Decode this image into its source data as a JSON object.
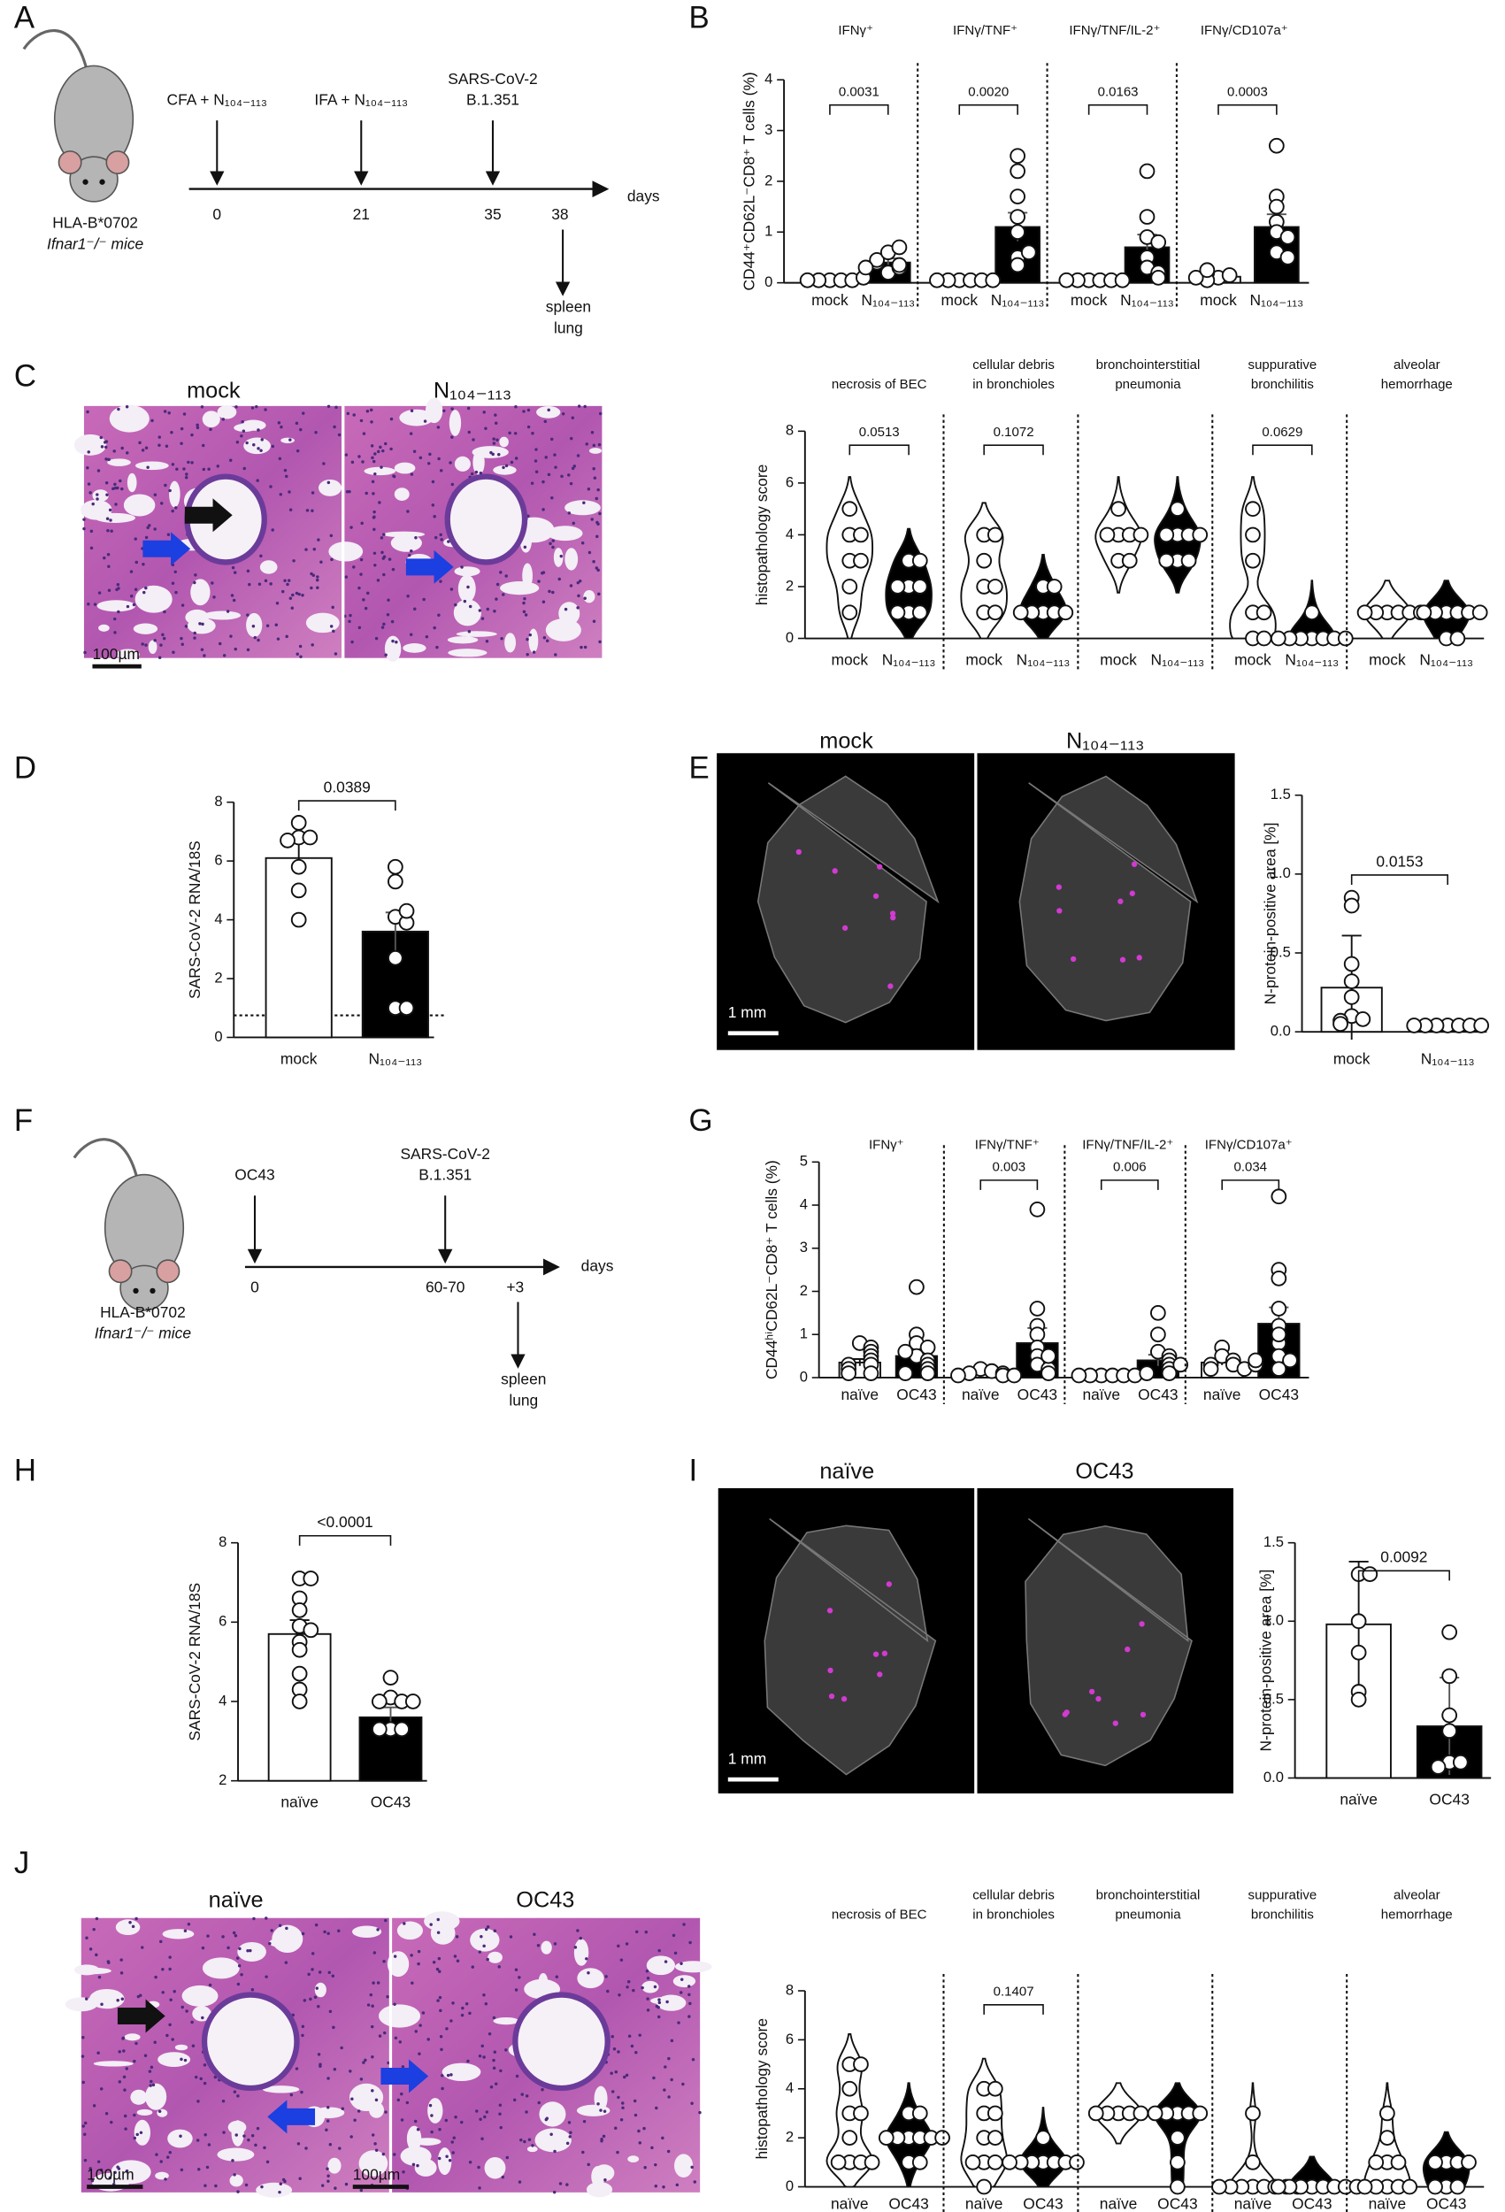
{
  "panel_labels": [
    "A",
    "B",
    "C",
    "D",
    "E",
    "F",
    "G",
    "H",
    "I",
    "J"
  ],
  "schemes": [
    {
      "mouse": [
        "HLA-B*0702",
        "Ifnar1⁻/⁻ mice"
      ],
      "axis": "days",
      "events": [
        {
          "label": [
            "CFA + N₁₀₄₋₁₁₃"
          ],
          "day": "0"
        },
        {
          "label": [
            "IFA + N₁₀₄₋₁₁₃"
          ],
          "day": "21"
        },
        {
          "label": [
            "SARS-CoV-2",
            "B.1.351"
          ],
          "day": "35"
        },
        {
          "label": [
            "spleen",
            "lung"
          ],
          "day": "38"
        }
      ]
    },
    {
      "mouse": [
        "HLA-B*0702",
        "Ifnar1⁻/⁻ mice"
      ],
      "axis": "days",
      "events": [
        {
          "label": [
            "OC43"
          ],
          "day": "0"
        },
        {
          "label": [
            "SARS-CoV-2",
            "B.1.351"
          ],
          "day": "60-70"
        },
        {
          "label": [
            "spleen",
            "lung"
          ],
          "day": "+3"
        }
      ]
    }
  ],
  "micrographs": [
    {
      "labels": [
        "mock",
        "N₁₀₄₋₁₁₃"
      ],
      "scale_bars": [
        "100µm"
      ]
    },
    {
      "labels": [
        "mock",
        "N₁₀₄₋₁₁₃"
      ],
      "scale_bars": [
        "1 mm"
      ]
    },
    {
      "labels": [
        "naïve",
        "OC43"
      ],
      "scale_bars": [
        "1 mm"
      ]
    },
    {
      "labels": [
        "naïve",
        "OC43"
      ],
      "scale_bars": [
        "100µm",
        "100µm"
      ]
    }
  ],
  "chart_data": [
    {
      "type": "dot_bar",
      "ylabel": "CD44⁺CD62L⁻CD8⁺ T cells (%)",
      "ylim": [
        0,
        4
      ],
      "yticks": [
        0,
        1,
        2,
        3,
        4
      ],
      "colors": [
        "#ffffff",
        "#000000"
      ],
      "subplots": [
        {
          "title": [
            "IFNγ⁺"
          ],
          "categories": [
            "mock",
            "N₁₀₄₋₁₁₃"
          ],
          "values": [
            0.05,
            0.4
          ],
          "errors": [
            0.02,
            0.08
          ],
          "points": [
            [
              0.05,
              0.05,
              0.05,
              0.05,
              0.05,
              0.1
            ],
            [
              0.2,
              0.3,
              0.35,
              0.4,
              0.45,
              0.6,
              0.7,
              0.3
            ]
          ],
          "p_value": "0.0031"
        },
        {
          "title": [
            "IFNγ/TNF⁺"
          ],
          "categories": [
            "mock",
            "N₁₀₄₋₁₁₃"
          ],
          "values": [
            0.05,
            1.1
          ],
          "errors": [
            0.02,
            0.28
          ],
          "points": [
            [
              0.05,
              0.05,
              0.05,
              0.05,
              0.05,
              0.05
            ],
            [
              2.5,
              2.2,
              1.7,
              1.3,
              1.0,
              0.5,
              0.35,
              0.6
            ]
          ],
          "p_value": "0.0020"
        },
        {
          "title": [
            "IFNγ/TNF/IL-2⁺"
          ],
          "categories": [
            "mock",
            "N₁₀₄₋₁₁₃"
          ],
          "values": [
            0.05,
            0.7
          ],
          "errors": [
            0.02,
            0.25
          ],
          "points": [
            [
              0.05,
              0.05,
              0.05,
              0.05,
              0.05,
              0.05
            ],
            [
              2.2,
              1.3,
              0.9,
              0.8,
              0.5,
              0.3,
              0.2,
              0.1
            ]
          ],
          "p_value": "0.0163"
        },
        {
          "title": [
            "IFNγ/CD107a⁺"
          ],
          "categories": [
            "mock",
            "N₁₀₄₋₁₁₃"
          ],
          "values": [
            0.12,
            1.1
          ],
          "errors": [
            0.03,
            0.25
          ],
          "points": [
            [
              0.1,
              0.15,
              0.2,
              0.05,
              0.1,
              0.25
            ],
            [
              2.7,
              1.7,
              1.5,
              1.2,
              1.0,
              0.9,
              0.6,
              0.5
            ]
          ],
          "p_value": "0.0003"
        }
      ]
    },
    {
      "type": "violin",
      "ylabel": "histopathology score",
      "ylim": [
        0,
        8
      ],
      "yticks": [
        0,
        2,
        4,
        6,
        8
      ],
      "colors": [
        "#ffffff",
        "#000000"
      ],
      "subplots": [
        {
          "title": [
            "necrosis of BEC"
          ],
          "categories": [
            "mock",
            "N₁₀₄₋₁₁₃"
          ],
          "points": [
            [
              5,
              4,
              4,
              3,
              3,
              2,
              1
            ],
            [
              3,
              2,
              2,
              2,
              1,
              1,
              1,
              3
            ]
          ],
          "p_value": "0.0513"
        },
        {
          "title": [
            "cellular debris",
            "in bronchioles"
          ],
          "categories": [
            "mock",
            "N₁₀₄₋₁₁₃"
          ],
          "points": [
            [
              4,
              4,
              3,
              2,
              2,
              1,
              1
            ],
            [
              2,
              2,
              1,
              1,
              1,
              1,
              1
            ]
          ],
          "p_value": "0.1072"
        },
        {
          "title": [
            "bronchointerstitial",
            "pneumonia"
          ],
          "categories": [
            "mock",
            "N₁₀₄₋₁₁₃"
          ],
          "points": [
            [
              5,
              4,
              4,
              4,
              4,
              3,
              3
            ],
            [
              5,
              4,
              4,
              4,
              3,
              3,
              3,
              4
            ]
          ]
        },
        {
          "title": [
            "suppurative",
            "bronchilitis"
          ],
          "categories": [
            "mock",
            "N₁₀₄₋₁₁₃"
          ],
          "points": [
            [
              5,
              4,
              3,
              1,
              1,
              0,
              0
            ],
            [
              1,
              0,
              0,
              0,
              0,
              0,
              0,
              0
            ]
          ],
          "p_value": "0.0629"
        },
        {
          "title": [
            "alveolar",
            "hemorrhage"
          ],
          "categories": [
            "mock",
            "N₁₀₄₋₁₁₃"
          ],
          "points": [
            [
              1,
              1,
              1,
              1,
              1,
              1
            ],
            [
              1,
              1,
              1,
              1,
              1,
              0,
              0,
              1
            ]
          ]
        }
      ]
    },
    {
      "type": "dot_bar",
      "ylabel": "SARS-CoV-2 RNA/18S",
      "ylim": [
        0,
        8
      ],
      "yticks": [
        0,
        2,
        4,
        6,
        8
      ],
      "colors": [
        "#ffffff",
        "#000000"
      ],
      "detection_limit": 0.75,
      "subplots": [
        {
          "categories": [
            "mock",
            "N₁₀₄₋₁₁₃"
          ],
          "values": [
            6.1,
            3.6
          ],
          "errors": [
            0.55,
            0.65
          ],
          "points": [
            [
              7.3,
              6.8,
              6.8,
              6.7,
              5.8,
              5.0,
              4.0
            ],
            [
              5.8,
              5.3,
              4.1,
              3.9,
              4.3,
              2.7,
              1.0,
              1.0
            ]
          ],
          "p_value": "0.0389"
        }
      ]
    },
    {
      "type": "dot_bar",
      "ylabel": "N-protein-positive area [%]",
      "ylim": [
        0,
        1.5
      ],
      "yticks": [
        {
          "value": 0,
          "label": "0.0"
        },
        0.5,
        {
          "value": 1,
          "label": "1.0"
        },
        1.5
      ],
      "colors": [
        "#ffffff",
        "#000000"
      ],
      "subplots": [
        {
          "categories": [
            "mock",
            "N₁₀₄₋₁₁₃"
          ],
          "values": [
            0.28,
            0.04
          ],
          "errors": [
            0.33,
            0.005
          ],
          "points": [
            [
              0.85,
              0.8,
              0.43,
              0.32,
              0.22,
              0.1,
              0.08,
              0.07,
              0.05
            ],
            [
              0.04,
              0.04,
              0.04,
              0.04,
              0.04,
              0.04,
              0.04
            ]
          ],
          "p_value": "0.0153"
        }
      ]
    },
    {
      "type": "dot_bar",
      "ylabel": "CD44ʰⁱCD62L⁻CD8⁺ T cells (%)",
      "ylim": [
        0,
        5
      ],
      "yticks": [
        0,
        1,
        2,
        3,
        4,
        5
      ],
      "colors": [
        "#ffffff",
        "#000000"
      ],
      "subplots": [
        {
          "title": [
            "IFNγ⁺"
          ],
          "categories": [
            "naïve",
            "OC43"
          ],
          "values": [
            0.35,
            0.5
          ],
          "errors": [
            0.08,
            0.18
          ],
          "points": [
            [
              0.8,
              0.7,
              0.6,
              0.5,
              0.4,
              0.3,
              0.3,
              0.2,
              0.1,
              0.1
            ],
            [
              2.1,
              1.0,
              0.8,
              0.7,
              0.5,
              0.4,
              0.3,
              0.2,
              0.1,
              0.1,
              0.6
            ]
          ]
        },
        {
          "title": [
            "IFNγ/TNF⁺"
          ],
          "categories": [
            "naïve",
            "OC43"
          ],
          "values": [
            0.1,
            0.8
          ],
          "errors": [
            0.03,
            0.35
          ],
          "points": [
            [
              0.2,
              0.15,
              0.1,
              0.1,
              0.05,
              0.05,
              0.05
            ],
            [
              3.9,
              1.6,
              1.2,
              1.0,
              0.7,
              0.5,
              0.3,
              0.2,
              0.1,
              0.5
            ]
          ],
          "p_value": "0.003"
        },
        {
          "title": [
            "IFNγ/TNF/IL-2⁺"
          ],
          "categories": [
            "naïve",
            "OC43"
          ],
          "values": [
            0.05,
            0.4
          ],
          "errors": [
            0.01,
            0.13
          ],
          "points": [
            [
              0.05,
              0.05,
              0.05,
              0.05,
              0.05,
              0.05
            ],
            [
              1.5,
              1.0,
              0.6,
              0.5,
              0.4,
              0.3,
              0.2,
              0.1,
              0.1,
              0.3
            ]
          ],
          "p_value": "0.006"
        },
        {
          "title": [
            "IFNγ/CD107a⁺"
          ],
          "categories": [
            "naïve",
            "OC43"
          ],
          "values": [
            0.35,
            1.25
          ],
          "errors": [
            0.06,
            0.38
          ],
          "points": [
            [
              0.7,
              0.5,
              0.4,
              0.3,
              0.3,
              0.2,
              0.2,
              0.3,
              0.4
            ],
            [
              4.2,
              2.5,
              2.3,
              1.6,
              1.2,
              0.8,
              0.5,
              0.4,
              0.2,
              1.0
            ]
          ],
          "p_value": "0.034"
        }
      ]
    },
    {
      "type": "dot_bar",
      "ylabel": "SARS-CoV-2 RNA/18S",
      "ylim": [
        2,
        8
      ],
      "yticks": [
        2,
        4,
        6,
        8
      ],
      "colors": [
        "#ffffff",
        "#000000"
      ],
      "subplots": [
        {
          "categories": [
            "naïve",
            "OC43"
          ],
          "values": [
            5.7,
            3.6
          ],
          "errors": [
            0.35,
            0.25
          ],
          "points": [
            [
              7.1,
              7.1,
              6.6,
              6.3,
              5.9,
              5.8,
              5.5,
              5.3,
              4.7,
              4.3,
              4.0
            ],
            [
              4.6,
              4.1,
              4.0,
              4.0,
              4.0,
              3.3,
              3.3,
              3.3
            ]
          ],
          "p_value": "<0.0001"
        }
      ]
    },
    {
      "type": "dot_bar",
      "ylabel": "N-protein-positive area [%]",
      "ylim": [
        0,
        1.5
      ],
      "yticks": [
        {
          "value": 0,
          "label": "0.0"
        },
        0.5,
        {
          "value": 1,
          "label": "1.0"
        },
        1.5
      ],
      "colors": [
        "#ffffff",
        "#000000"
      ],
      "subplots": [
        {
          "categories": [
            "naïve",
            "OC43"
          ],
          "values": [
            0.98,
            0.33
          ],
          "errors": [
            0.4,
            0.31
          ],
          "points": [
            [
              1.3,
              1.3,
              1.0,
              0.8,
              0.55,
              0.5
            ],
            [
              0.93,
              0.65,
              0.4,
              0.3,
              0.1,
              0.1,
              0.07
            ]
          ],
          "p_value": "0.0092"
        }
      ]
    },
    {
      "type": "violin",
      "ylabel": "histopathology score",
      "ylim": [
        0,
        8
      ],
      "yticks": [
        0,
        2,
        4,
        6,
        8
      ],
      "colors": [
        "#ffffff",
        "#000000"
      ],
      "subplots": [
        {
          "title": [
            "necrosis of BEC"
          ],
          "categories": [
            "naïve",
            "OC43"
          ],
          "points": [
            [
              5,
              5,
              4,
              3,
              3,
              2,
              1,
              1,
              1,
              1
            ],
            [
              3,
              3,
              2,
              2,
              2,
              2,
              1,
              1,
              2,
              2
            ]
          ]
        },
        {
          "title": [
            "cellular debris",
            "in bronchioles"
          ],
          "categories": [
            "naïve",
            "OC43"
          ],
          "points": [
            [
              4,
              4,
              3,
              3,
              2,
              2,
              1,
              1,
              1,
              0
            ],
            [
              2,
              1,
              1,
              1,
              1,
              1,
              1,
              1
            ]
          ],
          "p_value": "0.1407"
        },
        {
          "title": [
            "bronchointerstitial",
            "pneumonia"
          ],
          "categories": [
            "naïve",
            "OC43"
          ],
          "points": [
            [
              3,
              3,
              3,
              3,
              3
            ],
            [
              3,
              3,
              3,
              3,
              2,
              1,
              0,
              3
            ]
          ]
        },
        {
          "title": [
            "suppurative",
            "bronchilitis"
          ],
          "categories": [
            "naïve",
            "OC43"
          ],
          "points": [
            [
              3,
              1,
              0,
              0,
              0,
              0,
              0,
              0,
              0,
              0
            ],
            [
              0,
              0,
              0,
              0,
              0,
              0,
              0,
              0
            ]
          ]
        },
        {
          "title": [
            "alveolar",
            "hemorrhage"
          ],
          "categories": [
            "naïve",
            "OC43"
          ],
          "points": [
            [
              3,
              2,
              1,
              1,
              1,
              0,
              0,
              0,
              0,
              0
            ],
            [
              1,
              1,
              1,
              0,
              0,
              1,
              0
            ]
          ]
        }
      ]
    }
  ]
}
